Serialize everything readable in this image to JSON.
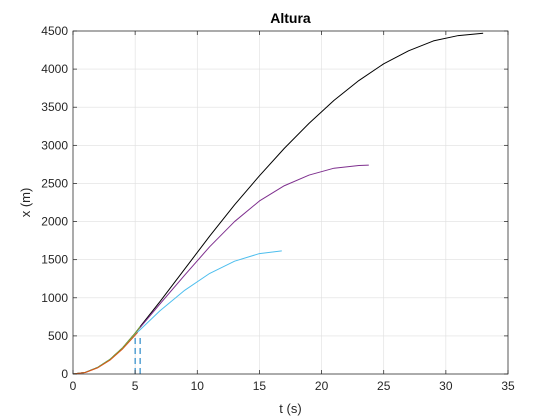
{
  "chart_data": {
    "type": "line",
    "title": "Altura",
    "xlabel": "t (s)",
    "ylabel": "x (m)",
    "xlim": [
      0,
      35
    ],
    "ylim": [
      0,
      4500
    ],
    "xticks": [
      0,
      5,
      10,
      15,
      20,
      25,
      30,
      35
    ],
    "yticks": [
      0,
      500,
      1000,
      1500,
      2000,
      2500,
      3000,
      3500,
      4000,
      4500
    ],
    "grid": true,
    "series": [
      {
        "color": "#000000",
        "style": "solid",
        "points": [
          [
            0,
            0
          ],
          [
            1,
            22
          ],
          [
            2,
            88
          ],
          [
            3,
            195
          ],
          [
            4,
            345
          ],
          [
            5,
            535
          ],
          [
            5.4,
            620
          ],
          [
            7,
            950
          ],
          [
            9,
            1380
          ],
          [
            11,
            1810
          ],
          [
            13,
            2220
          ],
          [
            15,
            2600
          ],
          [
            17,
            2960
          ],
          [
            19,
            3290
          ],
          [
            21,
            3590
          ],
          [
            23,
            3850
          ],
          [
            25,
            4070
          ],
          [
            27,
            4240
          ],
          [
            29,
            4370
          ],
          [
            31,
            4440
          ],
          [
            33,
            4470
          ]
        ]
      },
      {
        "color": "#7e2f8e",
        "style": "solid",
        "points": [
          [
            0,
            0
          ],
          [
            1,
            22
          ],
          [
            2,
            88
          ],
          [
            3,
            195
          ],
          [
            4,
            345
          ],
          [
            5,
            535
          ],
          [
            5.4,
            610
          ],
          [
            7,
            920
          ],
          [
            9,
            1300
          ],
          [
            11,
            1670
          ],
          [
            13,
            2000
          ],
          [
            15,
            2270
          ],
          [
            17,
            2470
          ],
          [
            19,
            2610
          ],
          [
            21,
            2700
          ],
          [
            23,
            2735
          ],
          [
            23.8,
            2740
          ]
        ]
      },
      {
        "color": "#4dbeee",
        "style": "solid",
        "points": [
          [
            0,
            0
          ],
          [
            1,
            22
          ],
          [
            2,
            88
          ],
          [
            3,
            195
          ],
          [
            4,
            340
          ],
          [
            5,
            520
          ],
          [
            5.4,
            580
          ],
          [
            7,
            830
          ],
          [
            9,
            1100
          ],
          [
            11,
            1320
          ],
          [
            13,
            1480
          ],
          [
            15,
            1580
          ],
          [
            16.8,
            1615
          ]
        ]
      },
      {
        "color": "#77ac30",
        "style": "solid",
        "points": [
          [
            0,
            0
          ],
          [
            1,
            22
          ],
          [
            2,
            88
          ],
          [
            3,
            195
          ],
          [
            4,
            345
          ],
          [
            5,
            535
          ],
          [
            5.4,
            620
          ]
        ]
      },
      {
        "color": "#d95319",
        "style": "solid",
        "points": [
          [
            0,
            0
          ],
          [
            1,
            20
          ],
          [
            2,
            82
          ],
          [
            3,
            185
          ],
          [
            4,
            330
          ],
          [
            5,
            510
          ],
          [
            5.2,
            545
          ]
        ]
      },
      {
        "color": "#0072bd",
        "style": "dashed",
        "points": [
          [
            5.4,
            0
          ],
          [
            5.4,
            520
          ]
        ]
      },
      {
        "color": "#0072bd",
        "style": "dashed",
        "points": [
          [
            5.0,
            0
          ],
          [
            5.0,
            480
          ]
        ]
      }
    ]
  }
}
